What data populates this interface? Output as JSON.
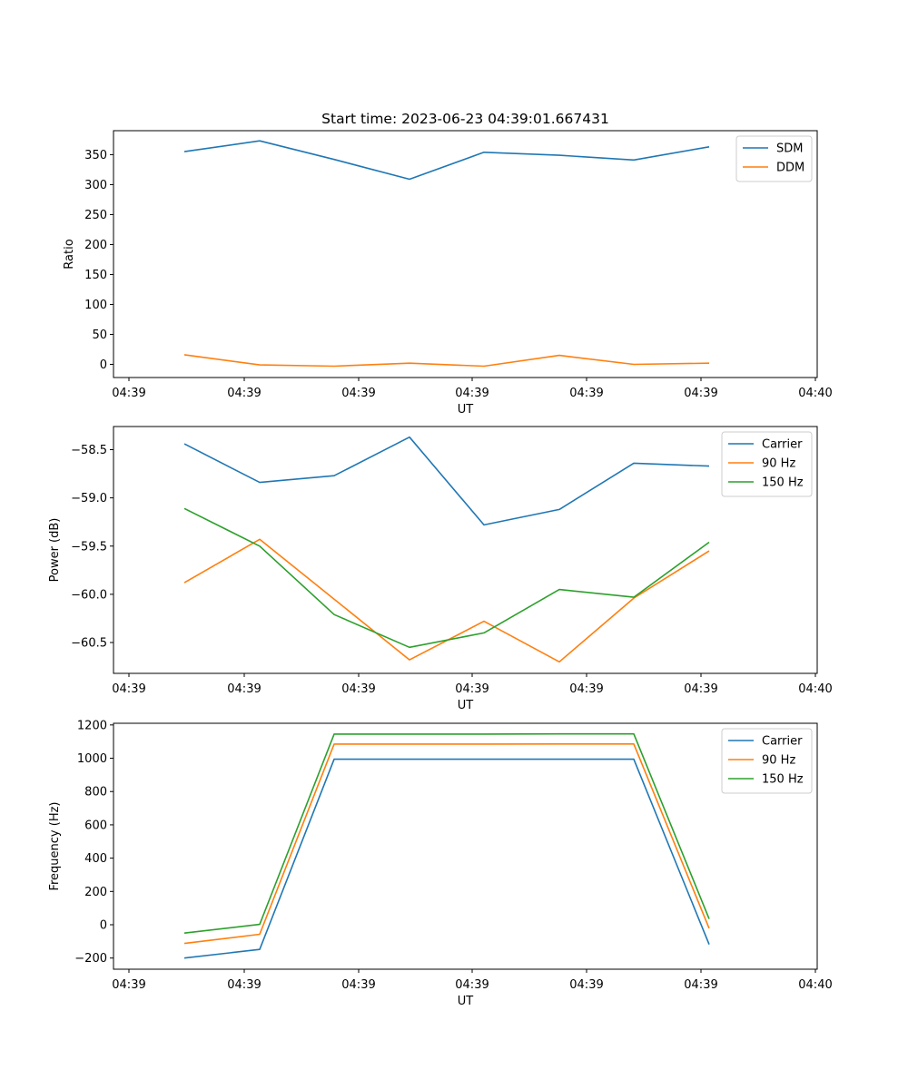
{
  "title": "Start time: 2023-06-23 04:39:01.667431",
  "colors": {
    "blue": "#1f77b4",
    "orange": "#ff7f0e",
    "green": "#2ca02c"
  },
  "chart_data": [
    {
      "type": "line",
      "xlabel": "UT",
      "ylabel": "Ratio",
      "x_tick_labels": [
        "04:39",
        "04:39",
        "04:39",
        "04:39",
        "04:39",
        "04:39",
        "04:40"
      ],
      "y_ticks": [
        0,
        50,
        100,
        150,
        200,
        250,
        300,
        350
      ],
      "y_tick_labels": [
        "0",
        "50",
        "100",
        "150",
        "200",
        "250",
        "300",
        "350"
      ],
      "ylim": [
        -22,
        390
      ],
      "legend": "top-right",
      "series": [
        {
          "name": "SDM",
          "color": "#1f77b4",
          "values": [
            355,
            373,
            342,
            309,
            354,
            349,
            341,
            363
          ]
        },
        {
          "name": "DDM",
          "color": "#ff7f0e",
          "values": [
            16,
            -1,
            -3,
            2,
            -3,
            15,
            0,
            2
          ]
        }
      ]
    },
    {
      "type": "line",
      "xlabel": "UT",
      "ylabel": "Power (dB)",
      "x_tick_labels": [
        "04:39",
        "04:39",
        "04:39",
        "04:39",
        "04:39",
        "04:39",
        "04:40"
      ],
      "y_ticks": [
        -60.5,
        -60.0,
        -59.5,
        -59.0,
        -58.5
      ],
      "y_tick_labels": [
        "−60.5",
        "−60.0",
        "−59.5",
        "−59.0",
        "−58.5"
      ],
      "ylim": [
        -60.82,
        -58.26
      ],
      "legend": "top-right",
      "series": [
        {
          "name": "Carrier",
          "color": "#1f77b4",
          "values": [
            -58.44,
            -58.84,
            -58.77,
            -58.37,
            -59.28,
            -59.12,
            -58.64,
            -58.67
          ]
        },
        {
          "name": "90 Hz",
          "color": "#ff7f0e",
          "values": [
            -59.88,
            -59.43,
            -60.05,
            -60.68,
            -60.28,
            -60.7,
            -60.04,
            -59.55
          ]
        },
        {
          "name": "150 Hz",
          "color": "#2ca02c",
          "values": [
            -59.11,
            -59.5,
            -60.21,
            -60.55,
            -60.4,
            -59.95,
            -60.03,
            -59.46
          ]
        }
      ]
    },
    {
      "type": "line",
      "xlabel": "UT",
      "ylabel": "Frequency (Hz)",
      "x_tick_labels": [
        "04:39",
        "04:39",
        "04:39",
        "04:39",
        "04:39",
        "04:39",
        "04:40"
      ],
      "y_ticks": [
        -200,
        0,
        200,
        400,
        600,
        800,
        1000,
        1200
      ],
      "y_tick_labels": [
        "−200",
        "0",
        "200",
        "400",
        "600",
        "800",
        "1000",
        "1200"
      ],
      "ylim": [
        -267,
        1210
      ],
      "legend": "top-right",
      "series": [
        {
          "name": "Carrier",
          "color": "#1f77b4",
          "values": [
            -200,
            -148,
            994,
            994,
            994,
            994,
            994,
            -118
          ]
        },
        {
          "name": "90 Hz",
          "color": "#ff7f0e",
          "values": [
            -112,
            -57,
            1085,
            1085,
            1085,
            1086,
            1086,
            -22
          ]
        },
        {
          "name": "150 Hz",
          "color": "#2ca02c",
          "values": [
            -50,
            2,
            1145,
            1145,
            1145,
            1146,
            1146,
            35
          ]
        }
      ]
    }
  ]
}
